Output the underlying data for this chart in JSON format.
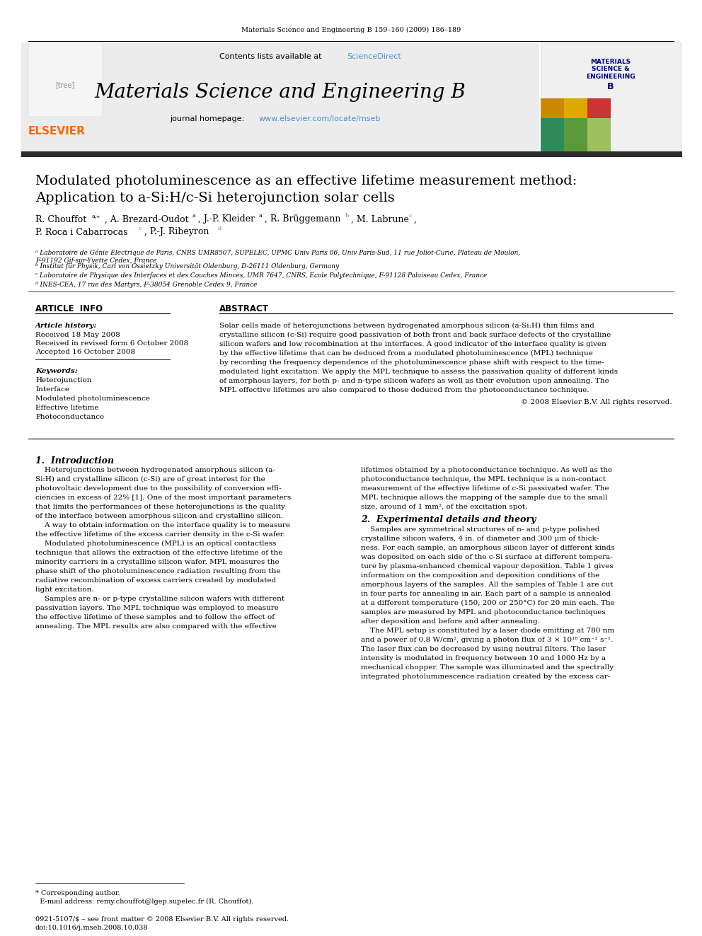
{
  "page_bg": "#ffffff",
  "top_journal_ref": "Materials Science and Engineering B 159–160 (2009) 186–189",
  "header_bg": "#e8e8e8",
  "header_contents": "Contents lists available at ScienceDirect",
  "header_sciencedirect_color": "#4a90d9",
  "header_journal_title": "Materials Science and Engineering B",
  "header_url_color": "#4a90d9",
  "dark_bar_color": "#2c2c2c",
  "paper_title_line1": "Modulated photoluminescence as an effective lifetime measurement method:",
  "paper_title_line2": "Application to a-Si:H/c-Si heterojunction solar cells",
  "affil_a": "ᵃ Laboratoire de Génie Electrique de Paris, CNRS UMR8507, SUPELEC, UPMC Univ Paris 06, Univ Paris-Sud, 11 rue Joliot-Curie, Plateau de Moulon,\nF-91192 Gif-sur-Yvette Cedex, France",
  "affil_b": "ᵇ Institut für Physik, Carl von Ossietzky Universität Oldenburg, D-26111 Oldenburg, Germany",
  "affil_c": "ᶜ Laboratoire de Physique des Interfaces et des Couches Minces, UMR 7647, CNRS, Ecole Polytechnique, F-91128 Palaiseau Cedex, France",
  "affil_d": "ᵈ INES-CEA, 17 rue des Martyrs, F-38054 Grenoble Cedex 9, France",
  "article_info_title": "ARTICLE  INFO",
  "article_history_title": "Article history:",
  "received": "Received 18 May 2008",
  "received_revised": "Received in revised form 6 October 2008",
  "accepted": "Accepted 16 October 2008",
  "keywords_title": "Keywords:",
  "keywords": [
    "Heterojunction",
    "Interface",
    "Modulated photoluminescence",
    "Effective lifetime",
    "Photoconductance"
  ],
  "abstract_title": "ABSTRACT",
  "abstract_text": "Solar cells made of heterojunctions between hydrogenated amorphous silicon (a-Si:H) thin films and crystalline silicon (c-Si) require good passivation of both front and back surface defects of the crystalline silicon wafers and low recombination at the interfaces. A good indicator of the interface quality is given by the effective lifetime that can be deduced from a modulated photoluminescence (MPL) technique by recording the frequency dependence of the photoluminescence phase shift with respect to the time-modulated light excitation. We apply the MPL technique to assess the passivation quality of different kinds of amorphous layers, for both p- and n-type silicon wafers as well as their evolution upon annealing. The MPL effective lifetimes are also compared to those deduced from the photoconductance technique.",
  "abstract_copyright": "© 2008 Elsevier B.V. All rights reserved.",
  "section1_title": "1.  Introduction",
  "section2_title": "2.  Experimental details and theory",
  "footer_note": "* Corresponding author.\n  E-mail address: remy.chouffot@lgep.supelec.fr (R. Chouffot).",
  "footer_issn": "0921-5107/$ – see front matter © 2008 Elsevier B.V. All rights reserved.\ndoi:10.1016/j.mseb.2008.10.038"
}
